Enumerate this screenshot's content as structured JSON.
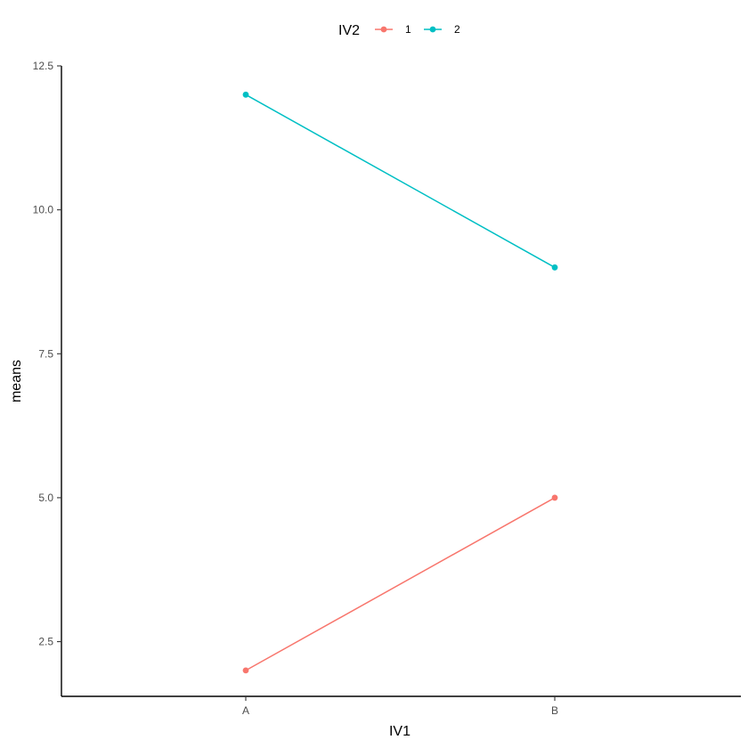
{
  "chart_data": {
    "type": "line",
    "xlabel": "IV1",
    "ylabel": "means",
    "categories": [
      "A",
      "B"
    ],
    "ylim": [
      1.55,
      12.5
    ],
    "yticks": [
      2.5,
      5.0,
      7.5,
      10.0,
      12.5
    ],
    "ytick_labels": [
      "2.5",
      "5.0",
      "7.5",
      "10.0",
      "12.5"
    ],
    "grid": false,
    "legend": {
      "title": "IV2",
      "position": "top"
    },
    "series": [
      {
        "name": "1",
        "color": "#F8766D",
        "values": [
          2,
          5
        ]
      },
      {
        "name": "2",
        "color": "#00BFC4",
        "values": [
          12,
          9
        ]
      }
    ]
  }
}
